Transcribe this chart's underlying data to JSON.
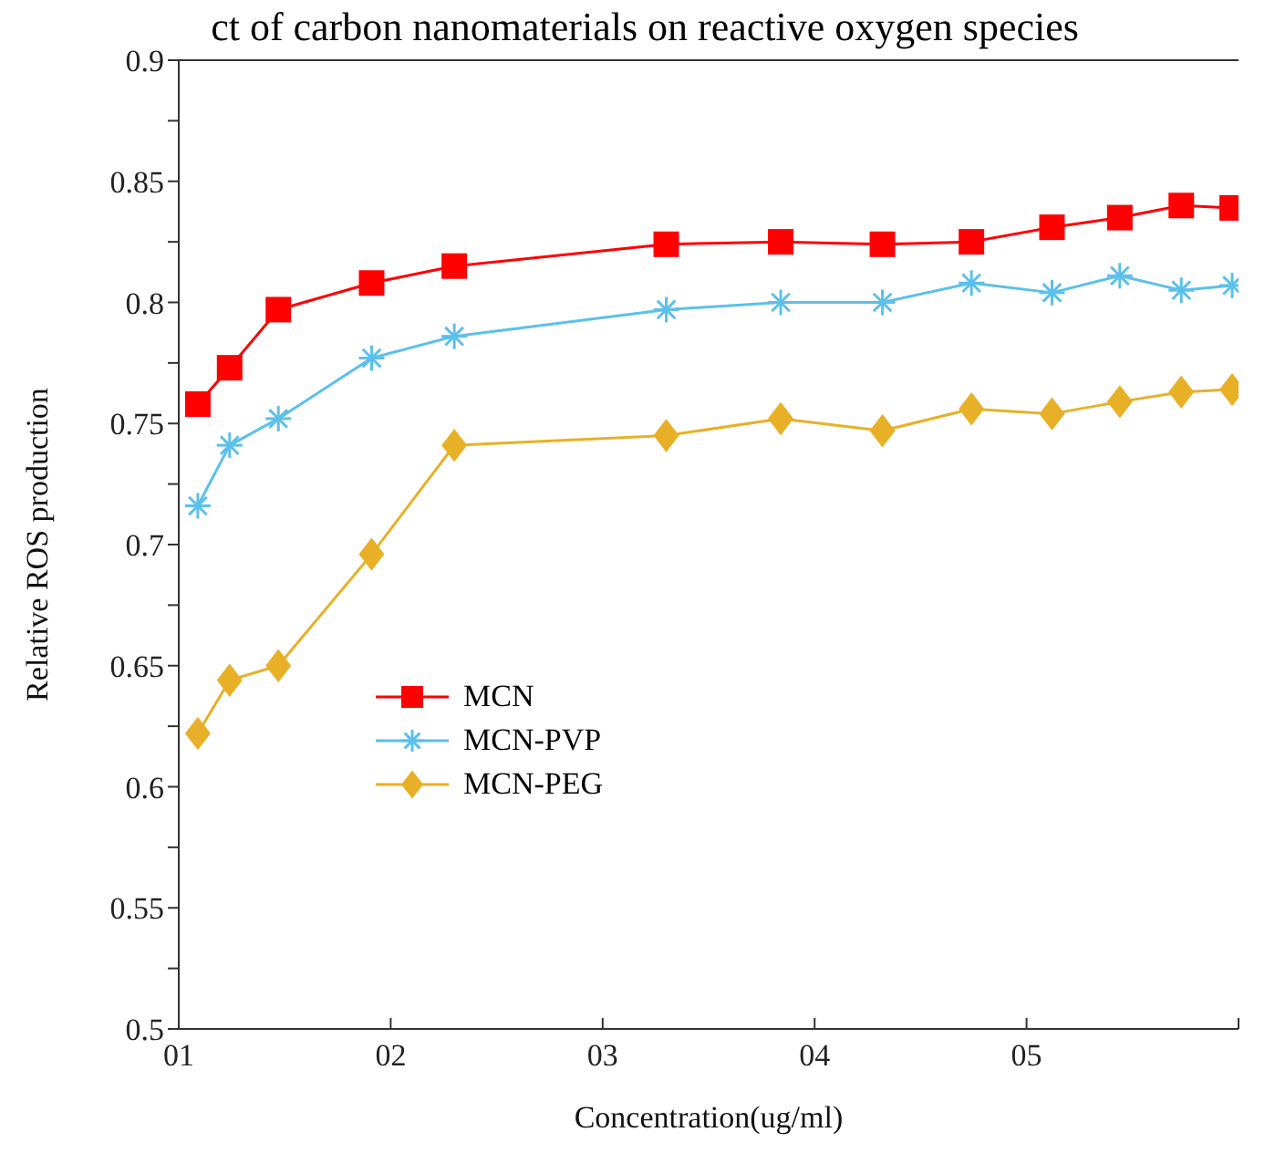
{
  "chart_data": {
    "type": "line",
    "title": "ct of carbon nanomaterials on reactive oxygen species",
    "xlabel": "Concentration(ug/ml)",
    "ylabel": "Relative ROS production",
    "xlim": [
      1,
      6
    ],
    "xticks": [
      {
        "value": 1,
        "label": "01"
      },
      {
        "value": 2,
        "label": "02"
      },
      {
        "value": 3,
        "label": "03"
      },
      {
        "value": 4,
        "label": "04"
      },
      {
        "value": 5,
        "label": "05"
      },
      {
        "value": 6,
        "label": null
      }
    ],
    "ylim": [
      0.5,
      0.9
    ],
    "yticks": [
      0.5,
      {
        "value": 0.525,
        "label": null
      },
      0.55,
      {
        "value": 0.575,
        "label": null
      },
      0.6,
      {
        "value": 0.625,
        "label": null
      },
      0.65,
      {
        "value": 0.675,
        "label": null
      },
      0.7,
      {
        "value": 0.725,
        "label": null
      },
      0.75,
      {
        "value": 0.775,
        "label": null
      },
      0.8,
      {
        "value": 0.825,
        "label": null
      },
      0.85,
      {
        "value": 0.875,
        "label": null
      },
      0.9
    ],
    "grid": false,
    "legend": "center",
    "line_style": "solid",
    "x": [
      1.09,
      1.24,
      1.47,
      1.91,
      2.3,
      3.3,
      3.84,
      4.32,
      4.74,
      5.12,
      5.44,
      5.73,
      5.97
    ],
    "series": [
      {
        "name": "MCN",
        "color": "#ff0000",
        "marker": "square",
        "values": [
          0.758,
          0.773,
          0.797,
          0.808,
          0.815,
          0.824,
          0.825,
          0.824,
          0.825,
          0.831,
          0.835,
          0.84,
          0.839
        ]
      },
      {
        "name": "MCN-PVP",
        "color": "#5bc0eb",
        "marker": "cross",
        "values": [
          0.716,
          0.741,
          0.752,
          0.777,
          0.786,
          0.797,
          0.8,
          0.8,
          0.808,
          0.804,
          0.811,
          0.805,
          0.807
        ]
      },
      {
        "name": "MCN-PEG",
        "color": "#e8b026",
        "marker": "diamond",
        "values": [
          0.622,
          0.644,
          0.65,
          0.696,
          0.741,
          0.745,
          0.752,
          0.747,
          0.756,
          0.754,
          0.759,
          0.763,
          0.764
        ]
      }
    ]
  }
}
